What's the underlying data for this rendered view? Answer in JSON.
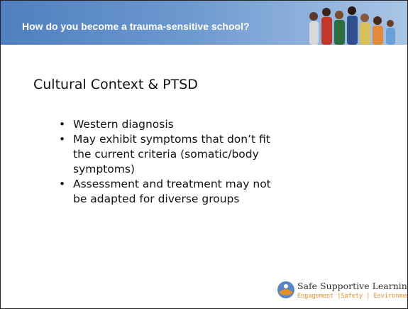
{
  "header": {
    "title": "How do you become a trauma-sensitive school?"
  },
  "slide": {
    "heading": "Cultural Context & PTSD",
    "bullets": [
      "Western diagnosis",
      "May exhibit symptoms that don’t fit the current criteria (somatic/body symptoms)",
      "Assessment and treatment may not be adapted for diverse groups"
    ]
  },
  "footer": {
    "logo_title": "Safe Supportive Learning",
    "logo_tagline": "Engagement |Safety | Environment"
  }
}
